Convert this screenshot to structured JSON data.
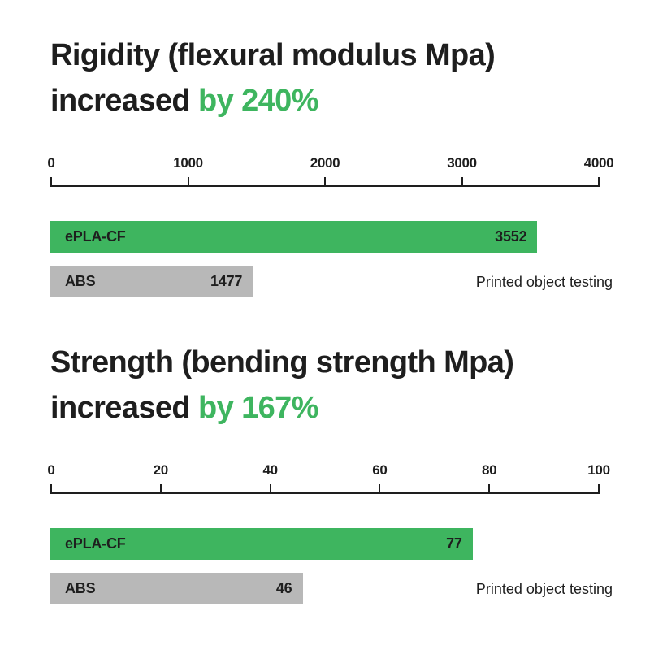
{
  "colors": {
    "green": "#3eb55f",
    "gray": "#b8b8b8",
    "text": "#1e1e1e",
    "background": "#ffffff"
  },
  "charts": [
    {
      "title_line1": "Rigidity (flexural modulus Mpa)",
      "title_line2_prefix": "increased ",
      "title_line2_highlight": "by 240%",
      "axis": {
        "min": 0,
        "max": 4000,
        "tick_labels": [
          "0",
          "1000",
          "2000",
          "3000",
          "4000"
        ]
      },
      "bars": [
        {
          "label": "ePLA-CF",
          "value": 3552,
          "value_display": "3552",
          "color_key": "green"
        },
        {
          "label": "ABS",
          "value": 1477,
          "value_display": "1477",
          "color_key": "gray"
        }
      ],
      "note": "Printed object testing"
    },
    {
      "title_line1": "Strength (bending strength Mpa)",
      "title_line2_prefix": "increased ",
      "title_line2_highlight": "by 167%",
      "axis": {
        "min": 0,
        "max": 100,
        "tick_labels": [
          "0",
          "20",
          "40",
          "60",
          "80",
          "100"
        ]
      },
      "bars": [
        {
          "label": "ePLA-CF",
          "value": 77,
          "value_display": "77",
          "color_key": "green"
        },
        {
          "label": "ABS",
          "value": 46,
          "value_display": "46",
          "color_key": "gray"
        }
      ],
      "note": "Printed object testing"
    }
  ],
  "chart_data": [
    {
      "type": "bar",
      "orientation": "horizontal",
      "title": "Rigidity (flexural modulus Mpa) increased by 240%",
      "highlight_text": "by 240%",
      "categories": [
        "ePLA-CF",
        "ABS"
      ],
      "values": [
        3552,
        1477
      ],
      "xlabel": "",
      "ylabel": "",
      "xlim": [
        0,
        4000
      ],
      "xticks": [
        0,
        1000,
        2000,
        3000,
        4000
      ],
      "bar_colors": [
        "#3eb55f",
        "#b8b8b8"
      ],
      "value_labels_inside_bar": true,
      "grid": false,
      "legend": false,
      "annotation": "Printed object testing"
    },
    {
      "type": "bar",
      "orientation": "horizontal",
      "title": "Strength (bending strength Mpa) increased by 167%",
      "highlight_text": "by 167%",
      "categories": [
        "ePLA-CF",
        "ABS"
      ],
      "values": [
        77,
        46
      ],
      "xlabel": "",
      "ylabel": "",
      "xlim": [
        0,
        100
      ],
      "xticks": [
        0,
        20,
        40,
        60,
        80,
        100
      ],
      "bar_colors": [
        "#3eb55f",
        "#b8b8b8"
      ],
      "value_labels_inside_bar": true,
      "grid": false,
      "legend": false,
      "annotation": "Printed object testing"
    }
  ]
}
